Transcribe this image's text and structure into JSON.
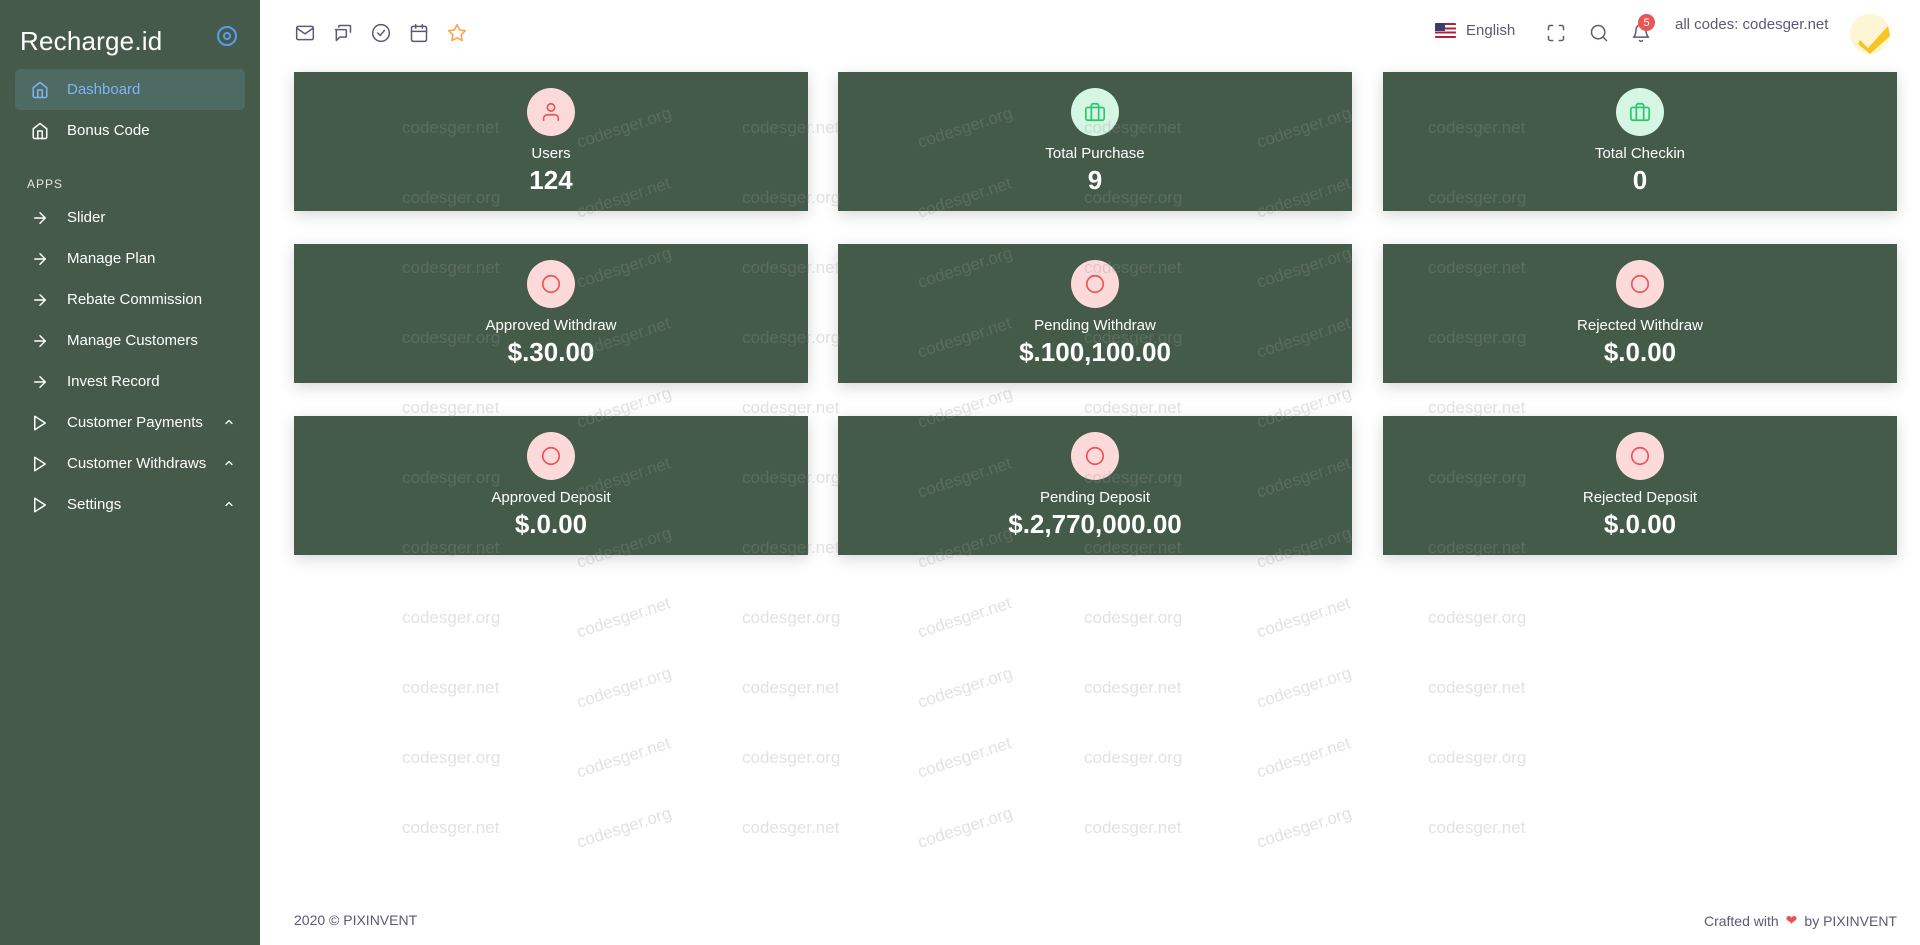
{
  "sidebar": {
    "brand": "Recharge.id",
    "items": [
      {
        "label": "Dashboard",
        "icon": "home-icon",
        "active": true
      },
      {
        "label": "Bonus Code",
        "icon": "home-icon",
        "active": false
      }
    ],
    "section_header": "APPS",
    "apps": [
      {
        "label": "Slider",
        "icon": "arrow-right-icon"
      },
      {
        "label": "Manage Plan",
        "icon": "arrow-right-icon"
      },
      {
        "label": "Rebate Commission",
        "icon": "arrow-right-icon"
      },
      {
        "label": "Manage Customers",
        "icon": "arrow-right-icon"
      },
      {
        "label": "Invest Record",
        "icon": "arrow-right-icon"
      },
      {
        "label": "Customer Payments",
        "icon": "play-icon",
        "has_submenu": true
      },
      {
        "label": "Customer Withdraws",
        "icon": "play-icon",
        "has_submenu": true
      },
      {
        "label": "Settings",
        "icon": "play-icon",
        "has_submenu": true
      }
    ]
  },
  "topbar": {
    "shortcut_icons": [
      "mail-icon",
      "chat-icon",
      "check-circle-icon",
      "calendar-icon",
      "star-icon"
    ],
    "language": "English",
    "notification_count": "5",
    "user_name": "all codes: codesger.net"
  },
  "cards": [
    {
      "label": "Users",
      "value": "124",
      "icon": "user-icon",
      "tone": "red"
    },
    {
      "label": "Total Purchase",
      "value": "9",
      "icon": "briefcase-icon",
      "tone": "green"
    },
    {
      "label": "Total Checkin",
      "value": "0",
      "icon": "briefcase-icon",
      "tone": "green"
    },
    {
      "label": "Approved Withdraw",
      "value": "$.30.00",
      "icon": "circle-icon",
      "tone": "red"
    },
    {
      "label": "Pending Withdraw",
      "value": "$.100,100.00",
      "icon": "circle-icon",
      "tone": "red"
    },
    {
      "label": "Rejected Withdraw",
      "value": "$.0.00",
      "icon": "circle-icon",
      "tone": "red"
    },
    {
      "label": "Approved Deposit",
      "value": "$.0.00",
      "icon": "circle-icon",
      "tone": "red"
    },
    {
      "label": "Pending Deposit",
      "value": "$.2,770,000.00",
      "icon": "circle-icon",
      "tone": "red"
    },
    {
      "label": "Rejected Deposit",
      "value": "$.0.00",
      "icon": "circle-icon",
      "tone": "red"
    }
  ],
  "watermark": {
    "text_net": "codesger.net",
    "text_org": "codesger.org"
  },
  "footer": {
    "copyright": "2020 © PIXINVENT",
    "crafted_prefix": "Crafted with",
    "crafted_suffix": "by PIXINVENT"
  },
  "colors": {
    "sidebar_bg": "#455a4a",
    "card_bg": "#445b4a",
    "accent": "#7eb5ee",
    "danger": "#ea5455",
    "success": "#28c76f"
  }
}
